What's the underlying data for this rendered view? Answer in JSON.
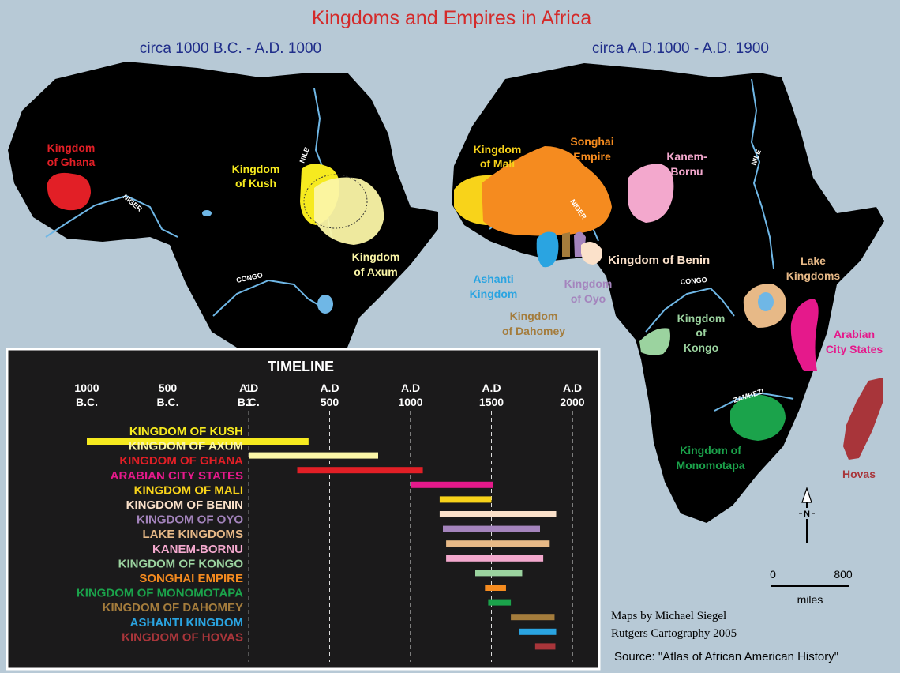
{
  "title": "Kingdoms and Empires in Africa",
  "subtitle_left": "circa 1000 B.C. -  A.D. 1000",
  "subtitle_right": "circa A.D.1000 - A.D. 1900",
  "left_map_labels": {
    "ghana_1": "Kingdom",
    "ghana_2": "of Ghana",
    "kush_1": "Kingdom",
    "kush_2": "of Kush",
    "axum_1": "Kingdom",
    "axum_2": "of Axum",
    "nile": "NILE",
    "niger": "NIGER",
    "congo": "CONGO"
  },
  "right_map_labels": {
    "mali_1": "Kingdom",
    "mali_2": "of Mali",
    "songhai_1": "Songhai",
    "songhai_2": "Empire",
    "kanem_1": "Kanem-",
    "kanem_2": "Bornu",
    "benin": "Kingdom of Benin",
    "ashanti_1": "Ashanti",
    "ashanti_2": "Kingdom",
    "oyo_1": "Kingdom",
    "oyo_2": "of Oyo",
    "dahomey_1": "Kingdom",
    "dahomey_2": "of Dahomey",
    "lake_1": "Lake",
    "lake_2": "Kingdoms",
    "kongo_1": "Kingdom",
    "kongo_2": "of",
    "kongo_3": "Kongo",
    "arabian_1": "Arabian",
    "arabian_2": "City States",
    "mono_1": "Kingdom of",
    "mono_2": "Monomotapa",
    "hovas": "Hovas",
    "nile": "NILE",
    "niger": "NIGER",
    "congo": "CONGO",
    "zambezi": "ZAMBEZI"
  },
  "compass": "N",
  "scale": {
    "zero": "0",
    "max": "800",
    "unit": "miles"
  },
  "credits": {
    "line1": "Maps by Michael Siegel",
    "line2": "Rutgers Cartography 2005",
    "source": "Source: \"Atlas of African American History\""
  },
  "colors": {
    "ocean": "#b7c9d6",
    "land": "#000000",
    "title_red": "#d42a2a",
    "subtitle_blue": "#1f2d8a",
    "river": "#6fb7e6"
  },
  "timeline": {
    "title": "TIMELINE",
    "ticks": [
      {
        "year": -1000,
        "line1": "1000",
        "line2": "B.C."
      },
      {
        "year": -500,
        "line1": "500",
        "line2": "B.C."
      },
      {
        "year": -1,
        "line1": "1",
        "line2": "B.C."
      },
      {
        "year": 1,
        "line1": "A.D",
        "line2": "1"
      },
      {
        "year": 500,
        "line1": "A.D",
        "line2": "500"
      },
      {
        "year": 1000,
        "line1": "A.D",
        "line2": "1000"
      },
      {
        "year": 1500,
        "line1": "A.D",
        "line2": "1500"
      },
      {
        "year": 2000,
        "line1": "A.D",
        "line2": "2000"
      }
    ],
    "kingdoms": [
      {
        "name": "KINGDOM OF KUSH",
        "start": -1000,
        "end": 370,
        "color": "#f6ea1f"
      },
      {
        "name": "KINGDOM OF AXUM",
        "start": 1,
        "end": 800,
        "color": "#fbf6a7"
      },
      {
        "name": "KINGDOM OF GHANA",
        "start": 300,
        "end": 1076,
        "color": "#e21f26"
      },
      {
        "name": "ARABIAN CITY STATES",
        "start": 1000,
        "end": 1510,
        "color": "#e5198b"
      },
      {
        "name": "KINGDOM OF MALI",
        "start": 1180,
        "end": 1500,
        "color": "#f8d31a"
      },
      {
        "name": "KINGDOM OF BENIN",
        "start": 1180,
        "end": 1900,
        "color": "#fbe1ca"
      },
      {
        "name": "KINGDOM OF OYO",
        "start": 1200,
        "end": 1800,
        "color": "#a484bd"
      },
      {
        "name": "LAKE KINGDOMS",
        "start": 1220,
        "end": 1860,
        "color": "#e7b987"
      },
      {
        "name": "KANEM-BORNU",
        "start": 1220,
        "end": 1820,
        "color": "#f3a8cd"
      },
      {
        "name": "KINGDOM OF KONGO",
        "start": 1400,
        "end": 1690,
        "color": "#9bd39f"
      },
      {
        "name": "SONGHAI EMPIRE",
        "start": 1460,
        "end": 1590,
        "color": "#f58b1f"
      },
      {
        "name": "KINGDOM OF MONOMOTAPA",
        "start": 1480,
        "end": 1620,
        "color": "#1ba34b"
      },
      {
        "name": "KINGDOM OF DAHOMEY",
        "start": 1620,
        "end": 1890,
        "color": "#a47c3c"
      },
      {
        "name": "ASHANTI KINGDOM",
        "start": 1670,
        "end": 1900,
        "color": "#2aa4e1"
      },
      {
        "name": "KINGDOM OF HOVAS",
        "start": 1770,
        "end": 1895,
        "color": "#a8353a"
      }
    ]
  }
}
